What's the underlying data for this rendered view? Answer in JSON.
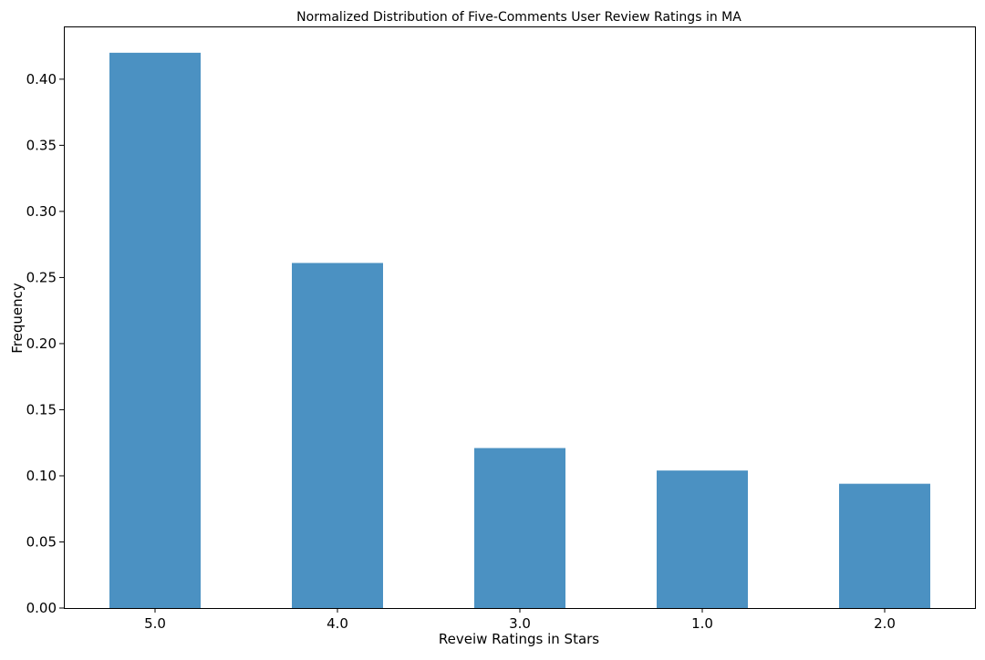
{
  "chart_data": {
    "type": "bar",
    "title": "Normalized Distribution of Five-Comments User Review Ratings in MA",
    "xlabel": "Reveiw Ratings in Stars",
    "ylabel": "Frequency",
    "categories": [
      "5.0",
      "4.0",
      "3.0",
      "1.0",
      "2.0"
    ],
    "values": [
      0.42,
      0.261,
      0.121,
      0.104,
      0.094
    ],
    "ylim": [
      0,
      0.44
    ],
    "yticks": [
      "0.00",
      "0.05",
      "0.10",
      "0.15",
      "0.20",
      "0.25",
      "0.30",
      "0.35",
      "0.40"
    ],
    "grid": false,
    "legend": "none",
    "bar_color": "#4b91c2"
  }
}
